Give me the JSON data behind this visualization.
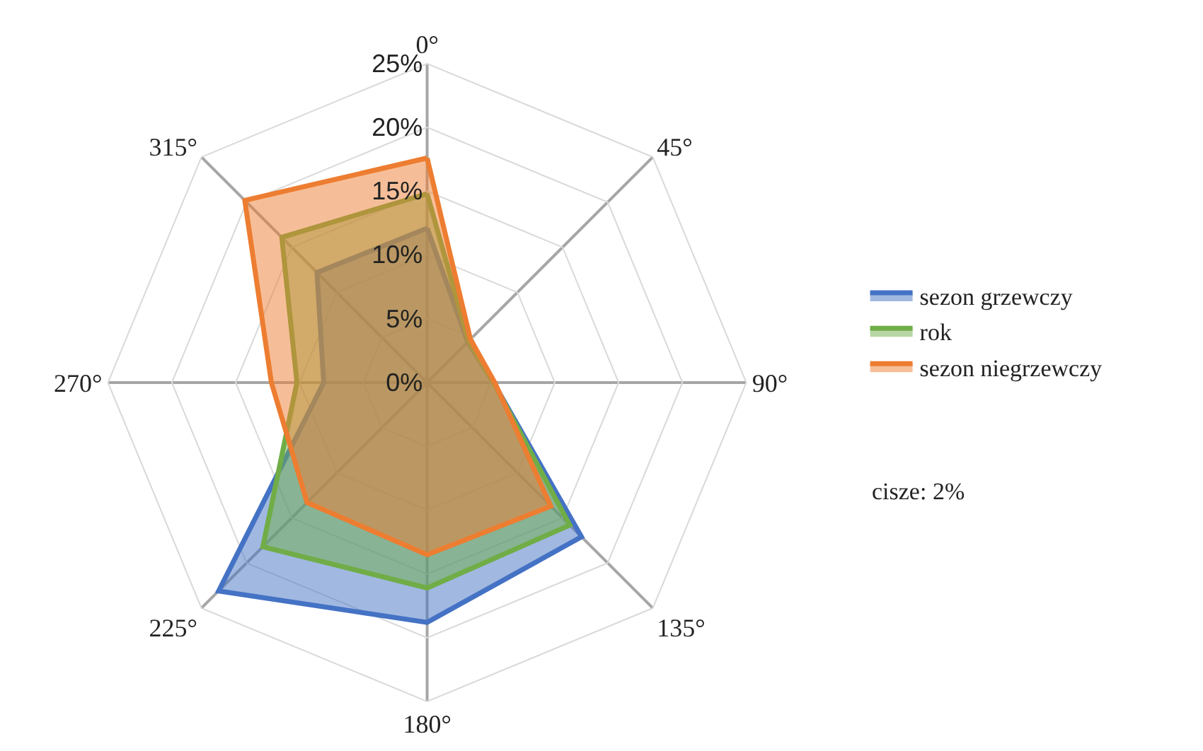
{
  "chart_data": {
    "type": "radar",
    "categories": [
      "0°",
      "45°",
      "90°",
      "135°",
      "180°",
      "225°",
      "270°",
      "315°"
    ],
    "series": [
      {
        "name": "sezon grzewczy",
        "color": "#4472c4",
        "values": [
          12.1,
          4.5,
          5.2,
          17.1,
          18.8,
          23.1,
          8.1,
          12.2
        ]
      },
      {
        "name": "rok",
        "color": "#70ad47",
        "values": [
          14.8,
          4.6,
          5.2,
          15.8,
          16.1,
          18.2,
          10.2,
          16.1
        ]
      },
      {
        "name": "sezon niegrzewczy",
        "color": "#ed7d31",
        "values": [
          17.6,
          4.8,
          5.3,
          13.7,
          13.5,
          13.3,
          12.2,
          20.2
        ]
      }
    ],
    "ylim": [
      0,
      25
    ],
    "yticks": [
      {
        "value": 0,
        "label": "0%"
      },
      {
        "value": 5,
        "label": "5%"
      },
      {
        "value": 10,
        "label": "10%"
      },
      {
        "value": 15,
        "label": "15%"
      },
      {
        "value": 20,
        "label": "20%"
      },
      {
        "value": 25,
        "label": "25%"
      }
    ],
    "grid": true,
    "legend": "right",
    "marker": "none",
    "annotations": [
      "cisze: 2%"
    ]
  }
}
